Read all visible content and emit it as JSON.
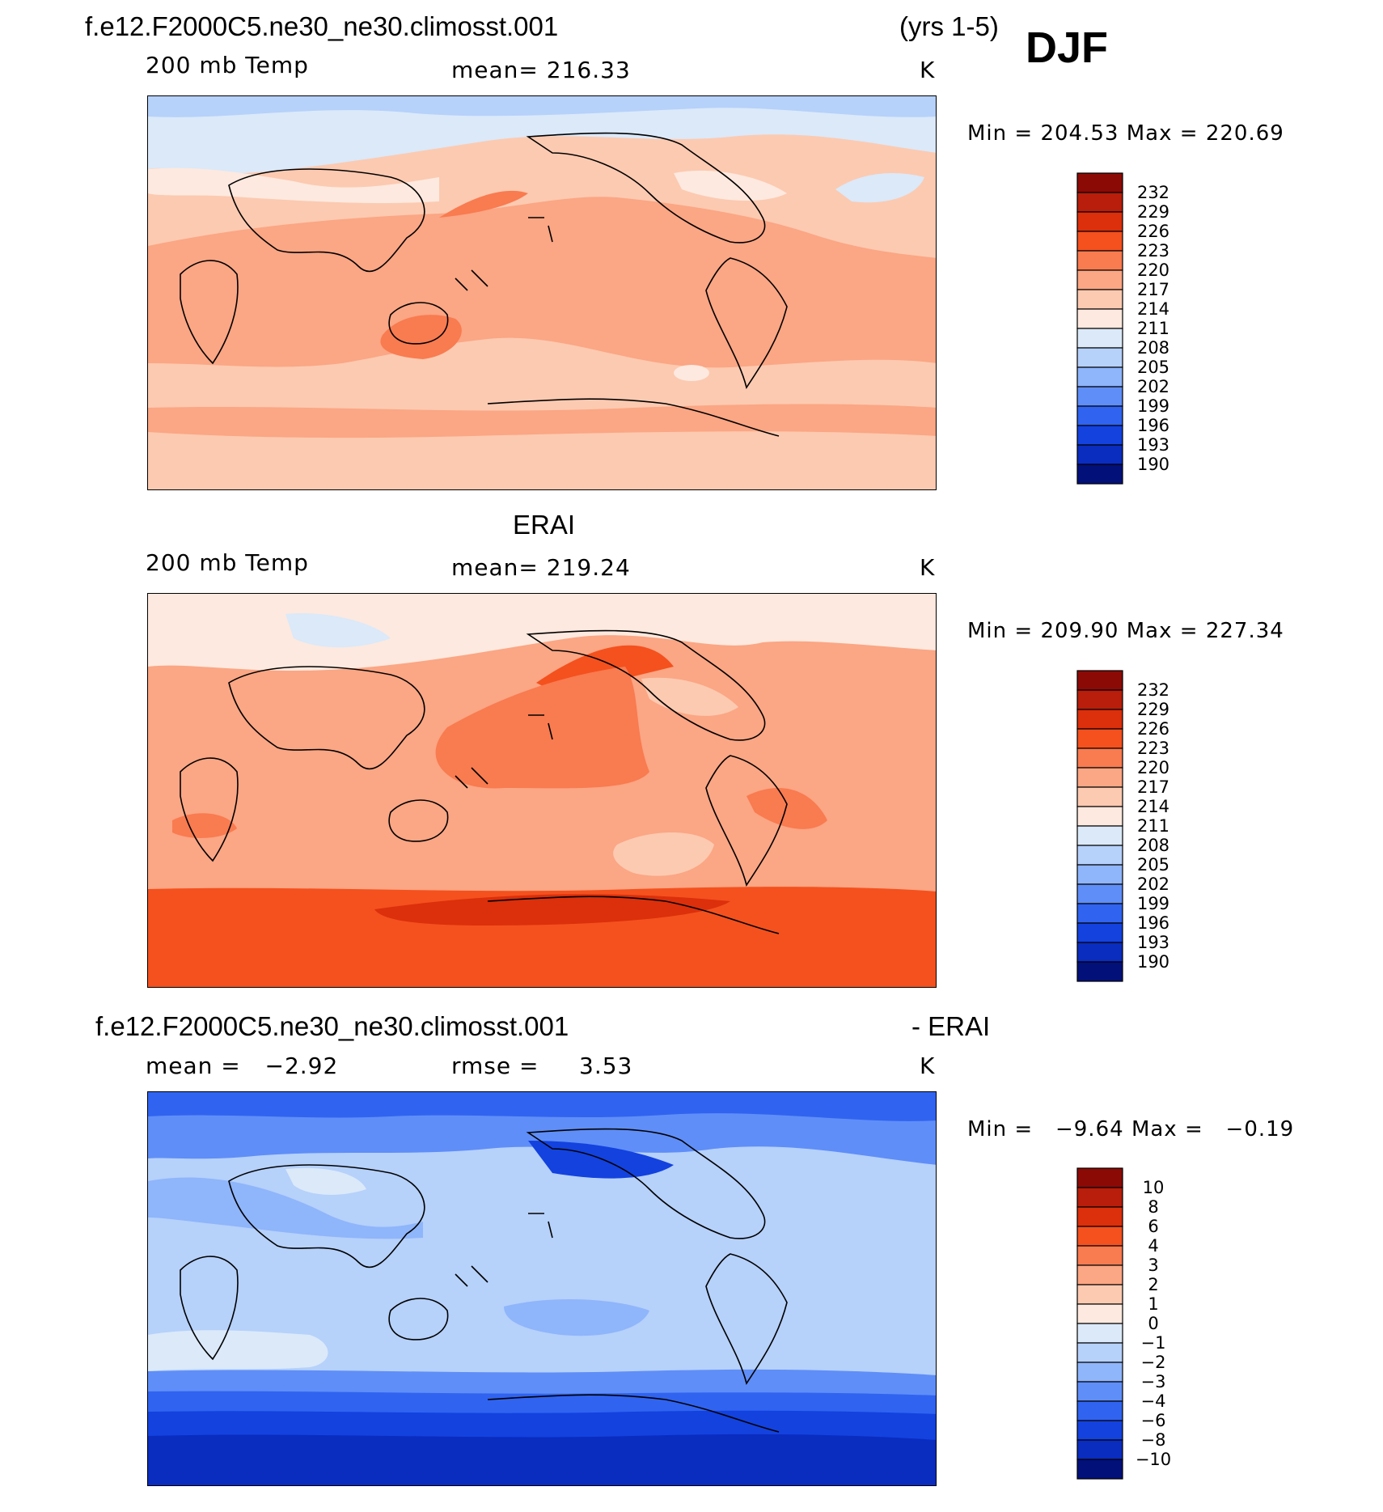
{
  "header": {
    "case_name": "f.e12.F2000C5.ne30_ne30.climosst.001",
    "years": "(yrs 1-5)",
    "season": "DJF"
  },
  "colors": {
    "warm_1": "#fde9df",
    "warm_2": "#fccab1",
    "warm_3": "#fba684",
    "warm_4": "#f97b50",
    "warm_5": "#f4511e",
    "warm_6": "#dc2f0b",
    "warm_7": "#b81e0b",
    "warm_8": "#8c0a06",
    "cool_1": "#dbe9f9",
    "cool_2": "#b6d1fa",
    "cool_3": "#8fb5fb",
    "cool_4": "#5f8ef8",
    "cool_5": "#3063f0",
    "cool_6": "#1342df",
    "cool_7": "#0a2cbf",
    "cool_8": "#041b96",
    "cool_9": "#02107a",
    "coast": "#000000"
  },
  "chart_data": [
    {
      "type": "heatmap",
      "id": "model",
      "title": "f.e12.F2000C5.ne30_ne30.climosst.001",
      "variable": "200 mb Temp",
      "mean_label": "mean=",
      "mean_value": "216.33",
      "units": "K",
      "min_label": "Min",
      "min_value": "204.53",
      "max_label": "Max",
      "max_value": "220.69",
      "levels": [
        "232",
        "229",
        "226",
        "223",
        "220",
        "217",
        "214",
        "211",
        "208",
        "205",
        "202",
        "199",
        "196",
        "193",
        "190"
      ],
      "colors": [
        "#8c0a06",
        "#b81e0b",
        "#dc2f0b",
        "#f4511e",
        "#f97b50",
        "#fba684",
        "#fccab1",
        "#fde9df",
        "#dbe9f9",
        "#b6d1fa",
        "#8fb5fb",
        "#5f8ef8",
        "#3063f0",
        "#1342df",
        "#0a2cbf",
        "#02107a"
      ]
    },
    {
      "type": "heatmap",
      "id": "obs",
      "title": "ERAI",
      "variable": "200 mb Temp",
      "mean_label": "mean=",
      "mean_value": "219.24",
      "units": "K",
      "min_label": "Min",
      "min_value": "209.90",
      "max_label": "Max",
      "max_value": "227.34",
      "levels": [
        "232",
        "229",
        "226",
        "223",
        "220",
        "217",
        "214",
        "211",
        "208",
        "205",
        "202",
        "199",
        "196",
        "193",
        "190"
      ],
      "colors": [
        "#8c0a06",
        "#b81e0b",
        "#dc2f0b",
        "#f4511e",
        "#f97b50",
        "#fba684",
        "#fccab1",
        "#fde9df",
        "#dbe9f9",
        "#b6d1fa",
        "#8fb5fb",
        "#5f8ef8",
        "#3063f0",
        "#1342df",
        "#0a2cbf",
        "#02107a"
      ]
    },
    {
      "type": "heatmap",
      "id": "diff",
      "title": "f.e12.F2000C5.ne30_ne30.climosst.001",
      "title_suffix": "- ERAI",
      "mean_label": "mean =",
      "mean_value": "−2.92",
      "rmse_label": "rmse =",
      "rmse_value": "3.53",
      "units": "K",
      "min_label": "Min",
      "min_value": "−9.64",
      "max_label": "Max",
      "max_value": "−0.19",
      "levels": [
        "10",
        "8",
        "6",
        "4",
        "3",
        "2",
        "1",
        "0",
        "−1",
        "−2",
        "−3",
        "−4",
        "−6",
        "−8",
        "−10"
      ],
      "colors": [
        "#8c0a06",
        "#b81e0b",
        "#dc2f0b",
        "#f4511e",
        "#f97b50",
        "#fba684",
        "#fccab1",
        "#fde9df",
        "#dbe9f9",
        "#b6d1fa",
        "#8fb5fb",
        "#5f8ef8",
        "#3063f0",
        "#1342df",
        "#0a2cbf",
        "#02107a"
      ]
    }
  ]
}
